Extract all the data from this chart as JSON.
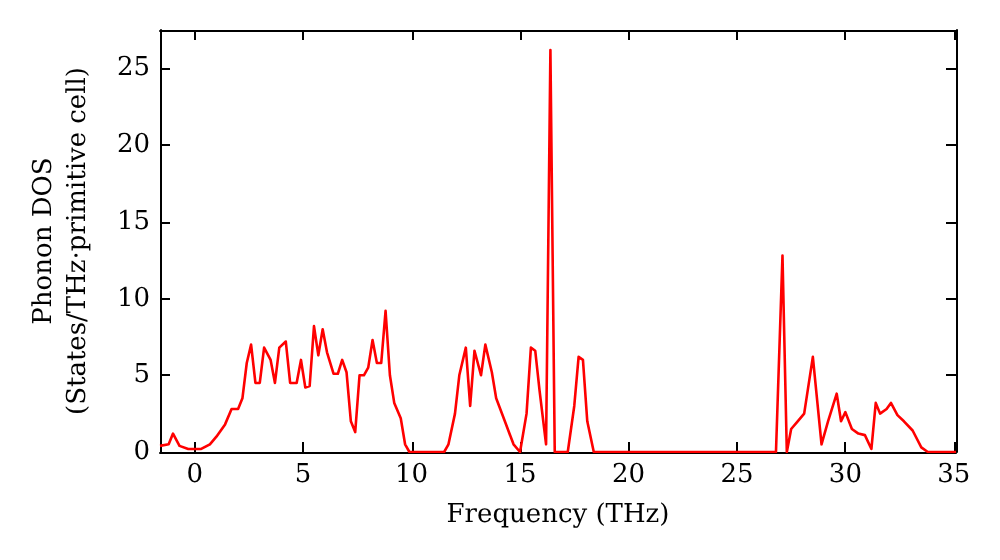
{
  "chart_data": {
    "type": "line",
    "xlabel": "Frequency (THz)",
    "ylabel": "Phonon DOS\n(States/THz·primitive cell)",
    "xlim": [
      -1.6,
      35.1
    ],
    "ylim": [
      0,
      27.5
    ],
    "xticks": [
      0,
      5,
      10,
      15,
      20,
      25,
      30,
      35
    ],
    "yticks": [
      0,
      5,
      10,
      15,
      20,
      25
    ],
    "grid": false,
    "marker": "none",
    "line_style": "solid",
    "series": [
      {
        "color": "#ff0000",
        "x": [
          -1.6,
          -1.2,
          -1.0,
          -0.7,
          -0.3,
          0.3,
          0.7,
          1.0,
          1.4,
          1.7,
          2.0,
          2.2,
          2.4,
          2.6,
          2.8,
          3.0,
          3.2,
          3.5,
          3.7,
          3.9,
          4.2,
          4.4,
          4.7,
          4.9,
          5.1,
          5.3,
          5.5,
          5.7,
          5.9,
          6.1,
          6.4,
          6.6,
          6.8,
          7.0,
          7.2,
          7.4,
          7.6,
          7.8,
          8.0,
          8.2,
          8.4,
          8.6,
          8.8,
          9.0,
          9.2,
          9.5,
          9.7,
          9.9,
          11.5,
          11.7,
          12.0,
          12.2,
          12.5,
          12.7,
          12.9,
          13.2,
          13.4,
          13.7,
          13.9,
          14.3,
          14.7,
          15.0,
          15.3,
          15.5,
          15.7,
          15.9,
          16.2,
          16.4,
          16.6,
          17.2,
          17.5,
          17.7,
          17.9,
          18.1,
          18.4,
          26.8,
          27.1,
          27.3,
          27.5,
          27.8,
          28.1,
          28.5,
          28.9,
          29.2,
          29.6,
          29.8,
          30.0,
          30.3,
          30.6,
          30.9,
          31.2,
          31.4,
          31.6,
          31.9,
          32.1,
          32.4,
          32.7,
          33.1,
          33.5,
          33.8,
          35.1
        ],
        "values": [
          0.4,
          0.5,
          1.2,
          0.4,
          0.2,
          0.2,
          0.5,
          1.0,
          1.8,
          2.8,
          2.8,
          3.5,
          5.8,
          7.0,
          4.5,
          4.5,
          6.8,
          6.0,
          4.5,
          6.8,
          7.2,
          4.5,
          4.5,
          6.0,
          4.2,
          4.3,
          8.2,
          6.3,
          8.0,
          6.5,
          5.1,
          5.1,
          6.0,
          5.2,
          2.0,
          1.3,
          5.0,
          5.0,
          5.5,
          7.3,
          5.8,
          5.8,
          9.2,
          5.0,
          3.2,
          2.2,
          0.5,
          0,
          0,
          0.5,
          2.5,
          5.0,
          6.8,
          3.0,
          6.6,
          5.0,
          7.0,
          5.2,
          3.5,
          2.0,
          0.5,
          0,
          2.5,
          6.8,
          6.6,
          4.0,
          0.5,
          26.2,
          0,
          0,
          3.0,
          6.2,
          6.0,
          2.0,
          0,
          0,
          12.8,
          0,
          1.5,
          2.0,
          2.5,
          6.2,
          0.5,
          2.0,
          3.8,
          2.0,
          2.6,
          1.5,
          1.2,
          1.1,
          0.2,
          3.2,
          2.5,
          2.8,
          3.2,
          2.4,
          2.0,
          1.4,
          0.3,
          0,
          0
        ]
      }
    ]
  }
}
